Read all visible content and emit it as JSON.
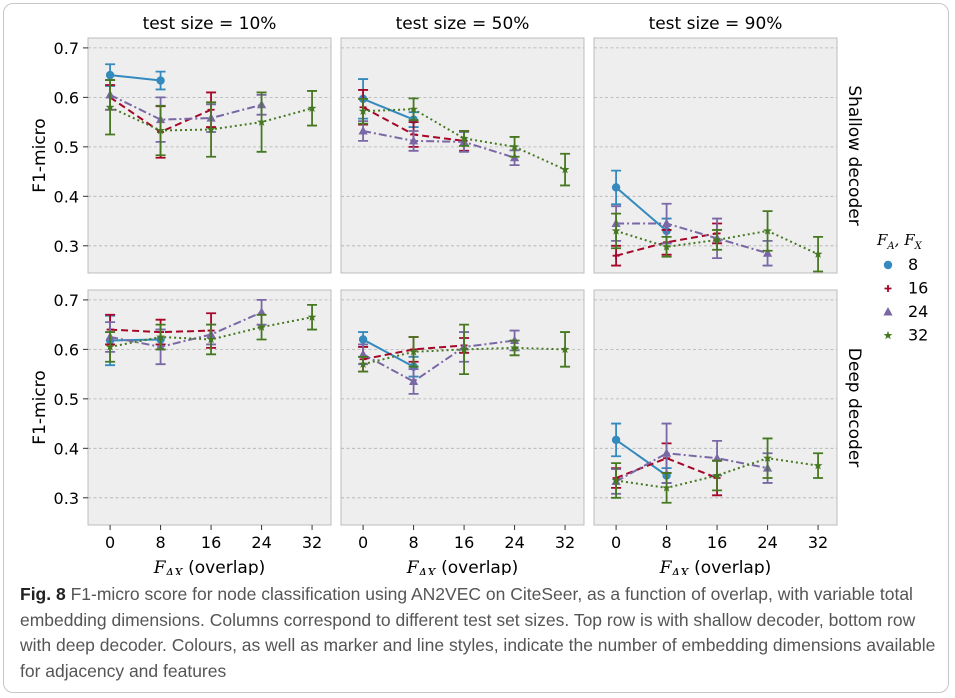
{
  "caption": {
    "label": "Fig. 8",
    "text": "F1-micro score for node classification using AN2VEC on CiteSeer, as a function of overlap, with variable total embedding dimensions. Columns correspond to different test set sizes. Top row is with shallow decoder, bottom row with deep decoder. Colours, as well as marker and line styles, indicate the number of embedding dimensions available for adjacency and features"
  },
  "chart_data": {
    "type": "line",
    "layout": "facet grid 2x3 with error bars",
    "ylabel": "F1-micro",
    "xlabel_math": "F_AX",
    "xlabel_suffix": "(overlap)",
    "x_ticks": [
      0,
      8,
      16,
      24,
      32
    ],
    "y_ticks": [
      0.3,
      0.4,
      0.5,
      0.6,
      0.7
    ],
    "xlim": [
      -3.5,
      35
    ],
    "ylim": [
      0.245,
      0.72
    ],
    "grid": "horizontal dashed",
    "col_titles": [
      "test size = 10%",
      "test size = 50%",
      "test size = 90%"
    ],
    "row_titles": [
      "Shallow decoder",
      "Deep decoder"
    ],
    "legend": {
      "title": "F_A, F_X",
      "position": "right",
      "entries": [
        {
          "label": "8",
          "color": "#348abd",
          "marker": "circle",
          "line": "solid"
        },
        {
          "label": "16",
          "color": "#a60628",
          "marker": "plus",
          "line": "dashed"
        },
        {
          "label": "24",
          "color": "#7a68a6",
          "marker": "triangle",
          "line": "dashdot"
        },
        {
          "label": "32",
          "color": "#467821",
          "marker": "star",
          "line": "dotted"
        }
      ]
    },
    "panels": [
      {
        "row": 0,
        "col": 0,
        "series": [
          {
            "dim": "8",
            "points": [
              [
                0,
                0.645,
                0.022
              ],
              [
                8,
                0.634,
                0.018
              ]
            ]
          },
          {
            "dim": "16",
            "points": [
              [
                0,
                0.6,
                0.025
              ],
              [
                8,
                0.53,
                0.052
              ],
              [
                16,
                0.575,
                0.035
              ]
            ]
          },
          {
            "dim": "24",
            "points": [
              [
                0,
                0.605,
                0.03
              ],
              [
                8,
                0.555,
                0.045
              ],
              [
                16,
                0.558,
                0.028
              ],
              [
                24,
                0.585,
                0.02
              ]
            ]
          },
          {
            "dim": "32",
            "points": [
              [
                0,
                0.58,
                0.055
              ],
              [
                8,
                0.533,
                0.05
              ],
              [
                16,
                0.535,
                0.055
              ],
              [
                24,
                0.55,
                0.06
              ],
              [
                32,
                0.578,
                0.035
              ]
            ]
          }
        ]
      },
      {
        "row": 0,
        "col": 1,
        "series": [
          {
            "dim": "8",
            "points": [
              [
                0,
                0.597,
                0.04
              ],
              [
                8,
                0.555,
                0.015
              ]
            ]
          },
          {
            "dim": "16",
            "points": [
              [
                0,
                0.58,
                0.035
              ],
              [
                8,
                0.525,
                0.025
              ],
              [
                16,
                0.512,
                0.02
              ]
            ]
          },
          {
            "dim": "24",
            "points": [
              [
                0,
                0.532,
                0.02
              ],
              [
                8,
                0.512,
                0.02
              ],
              [
                16,
                0.51,
                0.02
              ],
              [
                24,
                0.478,
                0.015
              ]
            ]
          },
          {
            "dim": "32",
            "points": [
              [
                0,
                0.572,
                0.025
              ],
              [
                8,
                0.576,
                0.022
              ],
              [
                16,
                0.517,
                0.015
              ],
              [
                24,
                0.5,
                0.02
              ],
              [
                32,
                0.454,
                0.032
              ]
            ]
          }
        ]
      },
      {
        "row": 0,
        "col": 2,
        "series": [
          {
            "dim": "8",
            "points": [
              [
                0,
                0.418,
                0.034
              ],
              [
                8,
                0.33,
                0.025
              ]
            ]
          },
          {
            "dim": "16",
            "points": [
              [
                0,
                0.28,
                0.02
              ],
              [
                8,
                0.307,
                0.025
              ],
              [
                16,
                0.325,
                0.02
              ]
            ]
          },
          {
            "dim": "24",
            "points": [
              [
                0,
                0.345,
                0.035
              ],
              [
                8,
                0.345,
                0.04
              ],
              [
                16,
                0.315,
                0.04
              ],
              [
                24,
                0.285,
                0.025
              ]
            ]
          },
          {
            "dim": "32",
            "points": [
              [
                0,
                0.33,
                0.035
              ],
              [
                8,
                0.298,
                0.02
              ],
              [
                16,
                0.312,
                0.02
              ],
              [
                24,
                0.33,
                0.04
              ],
              [
                32,
                0.283,
                0.035
              ]
            ]
          }
        ]
      },
      {
        "row": 1,
        "col": 0,
        "series": [
          {
            "dim": "8",
            "points": [
              [
                0,
                0.618,
                0.05
              ],
              [
                8,
                0.62,
                0.02
              ]
            ]
          },
          {
            "dim": "16",
            "points": [
              [
                0,
                0.64,
                0.03
              ],
              [
                8,
                0.635,
                0.025
              ],
              [
                16,
                0.638,
                0.035
              ]
            ]
          },
          {
            "dim": "24",
            "points": [
              [
                0,
                0.625,
                0.03
              ],
              [
                8,
                0.605,
                0.035
              ],
              [
                16,
                0.63,
                0.02
              ],
              [
                24,
                0.675,
                0.025
              ]
            ]
          },
          {
            "dim": "32",
            "points": [
              [
                0,
                0.605,
                0.03
              ],
              [
                8,
                0.625,
                0.025
              ],
              [
                16,
                0.62,
                0.03
              ],
              [
                24,
                0.645,
                0.025
              ],
              [
                32,
                0.665,
                0.025
              ]
            ]
          }
        ]
      },
      {
        "row": 1,
        "col": 1,
        "series": [
          {
            "dim": "8",
            "points": [
              [
                0,
                0.62,
                0.015
              ],
              [
                8,
                0.565,
                0.02
              ]
            ]
          },
          {
            "dim": "16",
            "points": [
              [
                0,
                0.58,
                0.025
              ],
              [
                8,
                0.6,
                0.025
              ],
              [
                16,
                0.608,
                0.015
              ]
            ]
          },
          {
            "dim": "24",
            "points": [
              [
                0,
                0.59,
                0.02
              ],
              [
                8,
                0.535,
                0.025
              ],
              [
                16,
                0.605,
                0.03
              ],
              [
                24,
                0.618,
                0.02
              ]
            ]
          },
          {
            "dim": "32",
            "points": [
              [
                0,
                0.57,
                0.015
              ],
              [
                8,
                0.595,
                0.03
              ],
              [
                16,
                0.6,
                0.05
              ],
              [
                24,
                0.603,
                0.015
              ],
              [
                32,
                0.6,
                0.035
              ]
            ]
          }
        ]
      },
      {
        "row": 1,
        "col": 2,
        "series": [
          {
            "dim": "8",
            "points": [
              [
                0,
                0.417,
                0.033
              ],
              [
                8,
                0.345,
                0.015
              ]
            ]
          },
          {
            "dim": "16",
            "points": [
              [
                0,
                0.34,
                0.02
              ],
              [
                8,
                0.38,
                0.03
              ],
              [
                16,
                0.34,
                0.035
              ]
            ]
          },
          {
            "dim": "24",
            "points": [
              [
                0,
                0.333,
                0.025
              ],
              [
                8,
                0.39,
                0.06
              ],
              [
                16,
                0.38,
                0.035
              ],
              [
                24,
                0.36,
                0.03
              ]
            ]
          },
          {
            "dim": "32",
            "points": [
              [
                0,
                0.335,
                0.035
              ],
              [
                8,
                0.32,
                0.03
              ],
              [
                16,
                0.345,
                0.03
              ],
              [
                24,
                0.38,
                0.04
              ],
              [
                32,
                0.365,
                0.025
              ]
            ]
          }
        ]
      }
    ]
  }
}
